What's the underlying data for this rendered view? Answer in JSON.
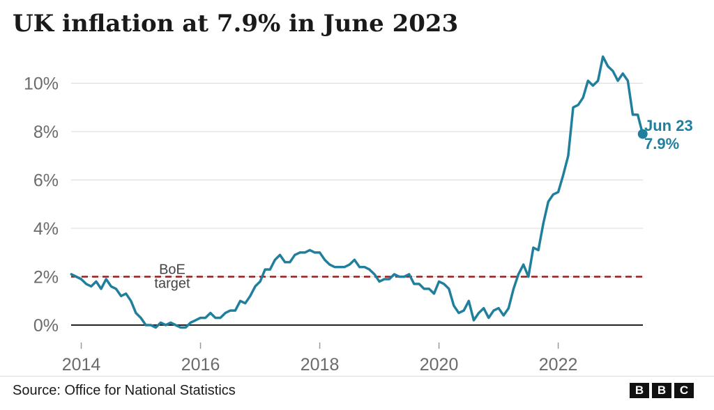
{
  "title": "UK inflation at 7.9% in June 2023",
  "source": "Source: Office for National Statistics",
  "logo": [
    "B",
    "B",
    "C"
  ],
  "colors": {
    "series": "#1f7f9c",
    "target": "#9b1b1b",
    "grid": "#d8d8d8",
    "axis_text": "#6b6b6b",
    "baseline": "#222222"
  },
  "chart_data": {
    "type": "line",
    "title": "UK inflation at 7.9% in June 2023",
    "xlabel": "",
    "ylabel": "",
    "xlim": [
      2013.83,
      2023.42
    ],
    "ylim": [
      0,
      11
    ],
    "x_ticks": [
      2014,
      2016,
      2018,
      2020,
      2022
    ],
    "x_tick_labels": [
      "2014",
      "2016",
      "2018",
      "2020",
      "2022"
    ],
    "y_ticks": [
      0,
      2,
      4,
      6,
      8,
      10
    ],
    "y_tick_labels": [
      "0%",
      "2%",
      "4%",
      "6%",
      "8%",
      "10%"
    ],
    "grid": true,
    "reference_line": {
      "y": 2,
      "label_line1": "BoE",
      "label_line2": "target",
      "style": "dashed"
    },
    "end_annotation": {
      "label_line1": "Jun 23",
      "label_line2": "7.9%"
    },
    "series": [
      {
        "x": [
          2013.833,
          2013.917,
          2014.0,
          2014.083,
          2014.167,
          2014.25,
          2014.333,
          2014.417,
          2014.5,
          2014.583,
          2014.667,
          2014.75,
          2014.833,
          2014.917,
          2015.0,
          2015.083,
          2015.167,
          2015.25,
          2015.333,
          2015.417,
          2015.5,
          2015.583,
          2015.667,
          2015.75,
          2015.833,
          2015.917,
          2016.0,
          2016.083,
          2016.167,
          2016.25,
          2016.333,
          2016.417,
          2016.5,
          2016.583,
          2016.667,
          2016.75,
          2016.833,
          2016.917,
          2017.0,
          2017.083,
          2017.167,
          2017.25,
          2017.333,
          2017.417,
          2017.5,
          2017.583,
          2017.667,
          2017.75,
          2017.833,
          2017.917,
          2018.0,
          2018.083,
          2018.167,
          2018.25,
          2018.333,
          2018.417,
          2018.5,
          2018.583,
          2018.667,
          2018.75,
          2018.833,
          2018.917,
          2019.0,
          2019.083,
          2019.167,
          2019.25,
          2019.333,
          2019.417,
          2019.5,
          2019.583,
          2019.667,
          2019.75,
          2019.833,
          2019.917,
          2020.0,
          2020.083,
          2020.167,
          2020.25,
          2020.333,
          2020.417,
          2020.5,
          2020.583,
          2020.667,
          2020.75,
          2020.833,
          2020.917,
          2021.0,
          2021.083,
          2021.167,
          2021.25,
          2021.333,
          2021.417,
          2021.5,
          2021.583,
          2021.667,
          2021.75,
          2021.833,
          2021.917,
          2022.0,
          2022.083,
          2022.167,
          2022.25,
          2022.333,
          2022.417,
          2022.5,
          2022.583,
          2022.667,
          2022.75,
          2022.833,
          2022.917,
          2023.0,
          2023.083,
          2023.167,
          2023.25,
          2023.333,
          2023.417
        ],
        "y": [
          2.1,
          2.0,
          1.9,
          1.7,
          1.6,
          1.8,
          1.5,
          1.9,
          1.6,
          1.5,
          1.2,
          1.3,
          1.0,
          0.5,
          0.3,
          0.0,
          0.0,
          -0.1,
          0.1,
          0.0,
          0.1,
          0.0,
          -0.1,
          -0.1,
          0.1,
          0.2,
          0.3,
          0.3,
          0.5,
          0.3,
          0.3,
          0.5,
          0.6,
          0.6,
          1.0,
          0.9,
          1.2,
          1.6,
          1.8,
          2.3,
          2.3,
          2.7,
          2.9,
          2.6,
          2.6,
          2.9,
          3.0,
          3.0,
          3.1,
          3.0,
          3.0,
          2.7,
          2.5,
          2.4,
          2.4,
          2.4,
          2.5,
          2.7,
          2.4,
          2.4,
          2.3,
          2.1,
          1.8,
          1.9,
          1.9,
          2.1,
          2.0,
          2.0,
          2.1,
          1.7,
          1.7,
          1.5,
          1.5,
          1.3,
          1.8,
          1.7,
          1.5,
          0.8,
          0.5,
          0.6,
          1.0,
          0.2,
          0.5,
          0.7,
          0.3,
          0.6,
          0.7,
          0.4,
          0.7,
          1.5,
          2.1,
          2.5,
          2.0,
          3.2,
          3.1,
          4.2,
          5.1,
          5.4,
          5.5,
          6.2,
          7.0,
          9.0,
          9.1,
          9.4,
          10.1,
          9.9,
          10.1,
          11.1,
          10.7,
          10.5,
          10.1,
          10.4,
          10.1,
          8.7,
          8.7,
          7.9
        ]
      }
    ]
  }
}
